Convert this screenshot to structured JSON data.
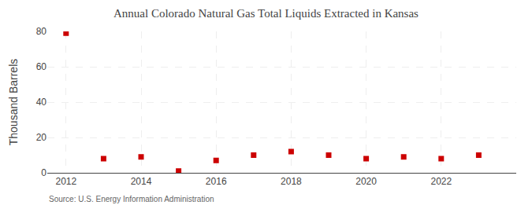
{
  "chart_data": {
    "type": "scatter",
    "title": "Annual Colorado Natural Gas Total Liquids Extracted in Kansas",
    "ylabel": "Thousand Barrels",
    "x": [
      2012,
      2013,
      2014,
      2015,
      2016,
      2017,
      2018,
      2019,
      2020,
      2021,
      2022,
      2023
    ],
    "values": [
      79,
      8,
      9,
      1,
      7,
      10,
      12,
      10,
      8,
      9,
      8,
      10
    ],
    "color": "#cc0000",
    "marker": "square",
    "xlim": [
      2011.5,
      2024
    ],
    "ylim": [
      0,
      80
    ],
    "xticks": [
      2012,
      2014,
      2016,
      2018,
      2020,
      2022
    ],
    "yticks": [
      0,
      20,
      40,
      60,
      80
    ],
    "grid": true,
    "annotations": [
      "Source: U.S. Energy Information Administration"
    ]
  }
}
